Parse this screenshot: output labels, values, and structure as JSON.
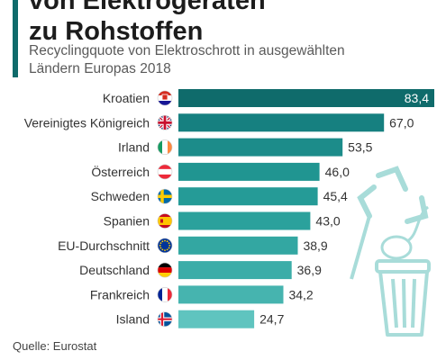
{
  "header": {
    "title_line1": "von Elektrogeräten",
    "title_line2": "zu Rohstoffen",
    "subtitle_line1": "Recyclingquote von Elektroschrott in ausgewählten",
    "subtitle_line2": "Ländern Europas 2018",
    "accent_color": "#0f6b6b"
  },
  "source": "Quelle: Eurostat",
  "chart_data": {
    "type": "bar",
    "orientation": "horizontal",
    "categories": [
      "Kroatien",
      "Vereinigtes Königreich",
      "Irland",
      "Österreich",
      "Schweden",
      "Spanien",
      "EU-Durchschnitt",
      "Deutschland",
      "Frankreich",
      "Island"
    ],
    "values": [
      83.4,
      67.0,
      53.5,
      46.0,
      45.4,
      43.0,
      38.9,
      36.9,
      34.2,
      24.7
    ],
    "value_labels": [
      "83,4",
      "67,0",
      "53,5",
      "46,0",
      "45,4",
      "43,0",
      "38,9",
      "36,9",
      "34,2",
      "24,7"
    ],
    "flags": [
      "flag-croatia",
      "flag-united-kingdom",
      "flag-ireland",
      "flag-austria",
      "flag-sweden",
      "flag-spain",
      "flag-eu",
      "flag-germany",
      "flag-france",
      "flag-iceland"
    ],
    "colors": [
      "#0f6b6b",
      "#168080",
      "#1c8c8a",
      "#209591",
      "#259b97",
      "#2ba19c",
      "#33a7a2",
      "#3cada8",
      "#46b4af",
      "#5fc4bf"
    ],
    "xlim": [
      0,
      83.4
    ],
    "grid": false,
    "legend": "none"
  },
  "illustration": {
    "icons": [
      "recycle-icon",
      "mouse-icon",
      "trash-bin-icon"
    ],
    "color": "#a8dcd9"
  }
}
